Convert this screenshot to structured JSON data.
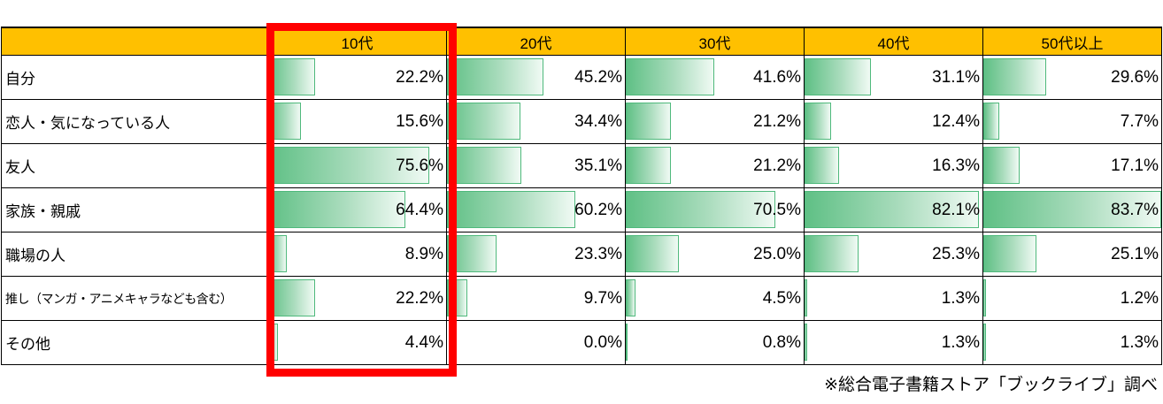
{
  "table": {
    "header": {
      "corner_label": "",
      "columns": [
        "10代",
        "20代",
        "30代",
        "40代",
        "50代以上"
      ],
      "bg_color": "#FFC000"
    },
    "rows": [
      {
        "label": "自分",
        "values": [
          "22.2%",
          "45.2%",
          "41.6%",
          "31.1%",
          "29.6%"
        ]
      },
      {
        "label": "恋人・気になっている人",
        "values": [
          "15.6%",
          "34.4%",
          "21.2%",
          "12.4%",
          "7.7%"
        ]
      },
      {
        "label": "友人",
        "values": [
          "75.6%",
          "35.1%",
          "21.2%",
          "16.3%",
          "17.1%"
        ]
      },
      {
        "label": "家族・親戚",
        "values": [
          "64.4%",
          "60.2%",
          "70.5%",
          "82.1%",
          "83.7%"
        ]
      },
      {
        "label": "職場の人",
        "values": [
          "8.9%",
          "23.3%",
          "25.0%",
          "25.3%",
          "25.1%"
        ]
      },
      {
        "label": "推し（マンガ・アニメキャラなども含む）",
        "values": [
          "22.2%",
          "9.7%",
          "4.5%",
          "1.3%",
          "1.2%"
        ]
      },
      {
        "label": "その他",
        "values": [
          "4.4%",
          "0.0%",
          "0.8%",
          "1.3%",
          "1.3%"
        ]
      }
    ],
    "bar": {
      "gradient_start": "#5fc085",
      "gradient_end": "#f0faf4",
      "border_color": "#4fb97c",
      "scale_max": 83.7
    }
  },
  "highlight": {
    "column": "10代",
    "color": "#ff0000"
  },
  "footer": {
    "note": "※総合電子書籍ストア「ブックライブ」調べ"
  },
  "chart_data": {
    "type": "table",
    "categories": [
      "自分",
      "恋人・気になっている人",
      "友人",
      "家族・親戚",
      "職場の人",
      "推し（マンガ・アニメキャラなども含む）",
      "その他"
    ],
    "series": [
      {
        "name": "10代",
        "values": [
          22.2,
          15.6,
          75.6,
          64.4,
          8.9,
          22.2,
          4.4
        ]
      },
      {
        "name": "20代",
        "values": [
          45.2,
          34.4,
          35.1,
          60.2,
          23.3,
          9.7,
          0.0
        ]
      },
      {
        "name": "30代",
        "values": [
          41.6,
          21.2,
          21.2,
          70.5,
          25.0,
          4.5,
          0.8
        ]
      },
      {
        "name": "40代",
        "values": [
          31.1,
          12.4,
          16.3,
          82.1,
          25.3,
          1.3,
          1.3
        ]
      },
      {
        "name": "50代以上",
        "values": [
          29.6,
          7.7,
          17.1,
          83.7,
          25.1,
          1.2,
          1.3
        ]
      }
    ],
    "value_format": "percent_one_decimal",
    "bar_scale_max": 83.7,
    "highlighted_column": "10代",
    "legend_position": "none",
    "grid": "table-borders",
    "annotations": [
      "※総合電子書籍ストア「ブックライブ」調べ"
    ]
  }
}
